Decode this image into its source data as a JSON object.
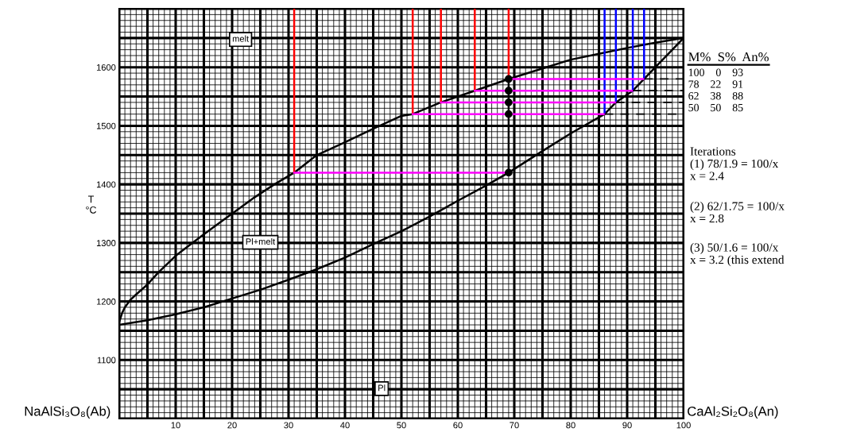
{
  "chart_data": {
    "type": "line",
    "ylabel": "T\n°C",
    "xlim": [
      0,
      100
    ],
    "ylim": [
      1000,
      1700
    ],
    "xticks": [
      {
        "value": 0,
        "label": null
      },
      {
        "value": 5,
        "label": null
      },
      10,
      {
        "value": 15,
        "label": null
      },
      20,
      {
        "value": 25,
        "label": null
      },
      30,
      {
        "value": 35,
        "label": null
      },
      40,
      {
        "value": 45,
        "label": null
      },
      50,
      {
        "value": 55,
        "label": null
      },
      60,
      {
        "value": 65,
        "label": null
      },
      70,
      {
        "value": 75,
        "label": null
      },
      80,
      {
        "value": 85,
        "label": null
      },
      90,
      {
        "value": 95,
        "label": null
      },
      100
    ],
    "yticks": [
      {
        "value": 1000,
        "label": null
      },
      {
        "value": 1050,
        "label": null
      },
      1100,
      {
        "value": 1150,
        "label": null
      },
      1200,
      {
        "value": 1250,
        "label": null
      },
      1300,
      {
        "value": 1350,
        "label": null
      },
      1400,
      {
        "value": 1450,
        "label": null
      },
      1500,
      {
        "value": 1550,
        "label": null
      },
      1600,
      {
        "value": 1650,
        "label": null
      },
      {
        "value": 1700,
        "label": null
      }
    ],
    "grid": true,
    "marker": "none",
    "line_style": "solid",
    "series": [
      {
        "color": "#000000",
        "x": [
          0,
          0.5,
          1,
          2,
          3,
          5,
          7,
          10,
          13,
          16,
          20,
          24,
          27.5,
          31,
          35,
          40,
          45,
          50,
          52,
          57,
          63,
          69,
          75,
          80,
          85,
          90,
          95,
          100
        ],
        "values": [
          1165,
          1180,
          1190,
          1203,
          1212,
          1229,
          1250,
          1278,
          1300,
          1322,
          1350,
          1378,
          1400,
          1420,
          1450,
          1472,
          1495,
          1517,
          1520,
          1540,
          1560,
          1580,
          1598,
          1613,
          1623,
          1633,
          1642,
          1650
        ]
      },
      {
        "color": "#000000",
        "x": [
          0,
          5,
          10,
          15,
          20,
          25,
          30,
          35,
          40,
          45,
          50,
          55,
          60,
          65,
          69,
          75,
          80,
          86,
          88,
          91,
          93,
          95,
          98,
          100
        ],
        "values": [
          1160,
          1168,
          1178,
          1190,
          1205,
          1220,
          1237,
          1255,
          1275,
          1298,
          1320,
          1345,
          1372,
          1398,
          1420,
          1457,
          1487,
          1520,
          1540,
          1560,
          1580,
          1600,
          1630,
          1650
        ]
      },
      {
        "color": "#ff0000",
        "x": [
          31,
          31
        ],
        "values": [
          1420,
          1700
        ]
      },
      {
        "color": "#ff0000",
        "x": [
          52,
          52
        ],
        "values": [
          1520,
          1700
        ]
      },
      {
        "color": "#ff0000",
        "x": [
          57,
          57
        ],
        "values": [
          1540,
          1700
        ]
      },
      {
        "color": "#ff0000",
        "x": [
          63,
          63
        ],
        "values": [
          1560,
          1700
        ]
      },
      {
        "color": "#ff0000",
        "x": [
          69,
          69
        ],
        "values": [
          1580,
          1700
        ]
      },
      {
        "color": "#0000ff",
        "x": [
          86,
          86
        ],
        "values": [
          1520,
          1700
        ]
      },
      {
        "color": "#0000ff",
        "x": [
          88,
          88
        ],
        "values": [
          1540,
          1700
        ]
      },
      {
        "color": "#0000ff",
        "x": [
          91,
          91
        ],
        "values": [
          1560,
          1700
        ]
      },
      {
        "color": "#0000ff",
        "x": [
          93,
          93
        ],
        "values": [
          1580,
          1700
        ]
      },
      {
        "color": "#ff00ff",
        "x": [
          31,
          69
        ],
        "values": [
          1420,
          1420
        ]
      },
      {
        "color": "#ff00ff",
        "x": [
          52,
          86
        ],
        "values": [
          1520,
          1520
        ]
      },
      {
        "color": "#ff00ff",
        "x": [
          57,
          88
        ],
        "values": [
          1540,
          1540
        ]
      },
      {
        "color": "#ff00ff",
        "x": [
          63,
          91
        ],
        "values": [
          1560,
          1560
        ]
      },
      {
        "color": "#ff00ff",
        "x": [
          69,
          93
        ],
        "values": [
          1580,
          1580
        ]
      },
      {
        "color": "#000000",
        "x": [
          69,
          69
        ],
        "values": [
          1420,
          1580
        ]
      },
      {
        "color": "#000000",
        "x": [
          93,
          100
        ],
        "values": [
          1580,
          1580
        ],
        "line_style": "dashed"
      },
      {
        "color": "#000000",
        "x": [
          91,
          100
        ],
        "values": [
          1560,
          1560
        ],
        "line_style": "dashed"
      },
      {
        "color": "#000000",
        "x": [
          88,
          100
        ],
        "values": [
          1540,
          1540
        ],
        "line_style": "dashed"
      },
      {
        "color": "#000000",
        "x": [
          86,
          100
        ],
        "values": [
          1520,
          1520
        ],
        "line_style": "dashed"
      },
      {
        "type": "scatter",
        "color": "#000000",
        "marker": "circle",
        "x": [
          69,
          69,
          69,
          69,
          69
        ],
        "values": [
          1420,
          1520,
          1540,
          1560,
          1580
        ]
      }
    ],
    "annotations": [
      "melt",
      "Pl+melt",
      "Pl",
      "NaAlSi₃O₈(Ab)",
      "CaAl₂Si₂O₈(An)",
      "M%  S%  An%",
      "100    0    93",
      "78    22    91",
      "62    38    88",
      "50    50    85",
      "Iterations\n(1) 78/1.9 = 100/x\nx = 2.4",
      "(2) 62/1.75 = 100/x\nx = 2.8",
      "(3) 50/1.6 = 100/x\nx = 3.2 (this extend"
    ]
  }
}
